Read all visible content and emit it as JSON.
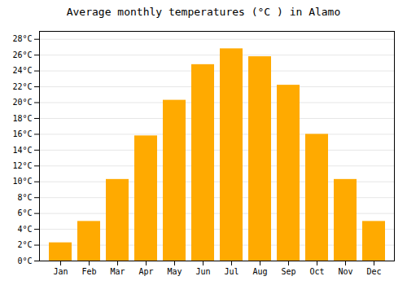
{
  "chart_data": {
    "type": "bar",
    "title": "Average monthly temperatures (°C ) in Alamo",
    "categories": [
      "Jan",
      "Feb",
      "Mar",
      "Apr",
      "May",
      "Jun",
      "Jul",
      "Aug",
      "Sep",
      "Oct",
      "Nov",
      "Dec"
    ],
    "values": [
      2.3,
      5.0,
      10.3,
      15.8,
      20.3,
      24.8,
      26.8,
      25.8,
      22.2,
      16.0,
      10.3,
      5.0
    ],
    "color": "#FFAA00",
    "ylim": [
      0,
      29
    ],
    "yticks": [
      {
        "value": 0,
        "label": "0°C"
      },
      {
        "value": 2,
        "label": "2°C"
      },
      {
        "value": 4,
        "label": "4°C"
      },
      {
        "value": 6,
        "label": "6°C"
      },
      {
        "value": 8,
        "label": "8°C"
      },
      {
        "value": 10,
        "label": "10°C"
      },
      {
        "value": 12,
        "label": "12°C"
      },
      {
        "value": 14,
        "label": "14°C"
      },
      {
        "value": 16,
        "label": "16°C"
      },
      {
        "value": 18,
        "label": "18°C"
      },
      {
        "value": 20,
        "label": "20°C"
      },
      {
        "value": 22,
        "label": "22°C"
      },
      {
        "value": 24,
        "label": "24°C"
      },
      {
        "value": 26,
        "label": "26°C"
      },
      {
        "value": 28,
        "label": "28°C"
      }
    ],
    "grid": true
  }
}
